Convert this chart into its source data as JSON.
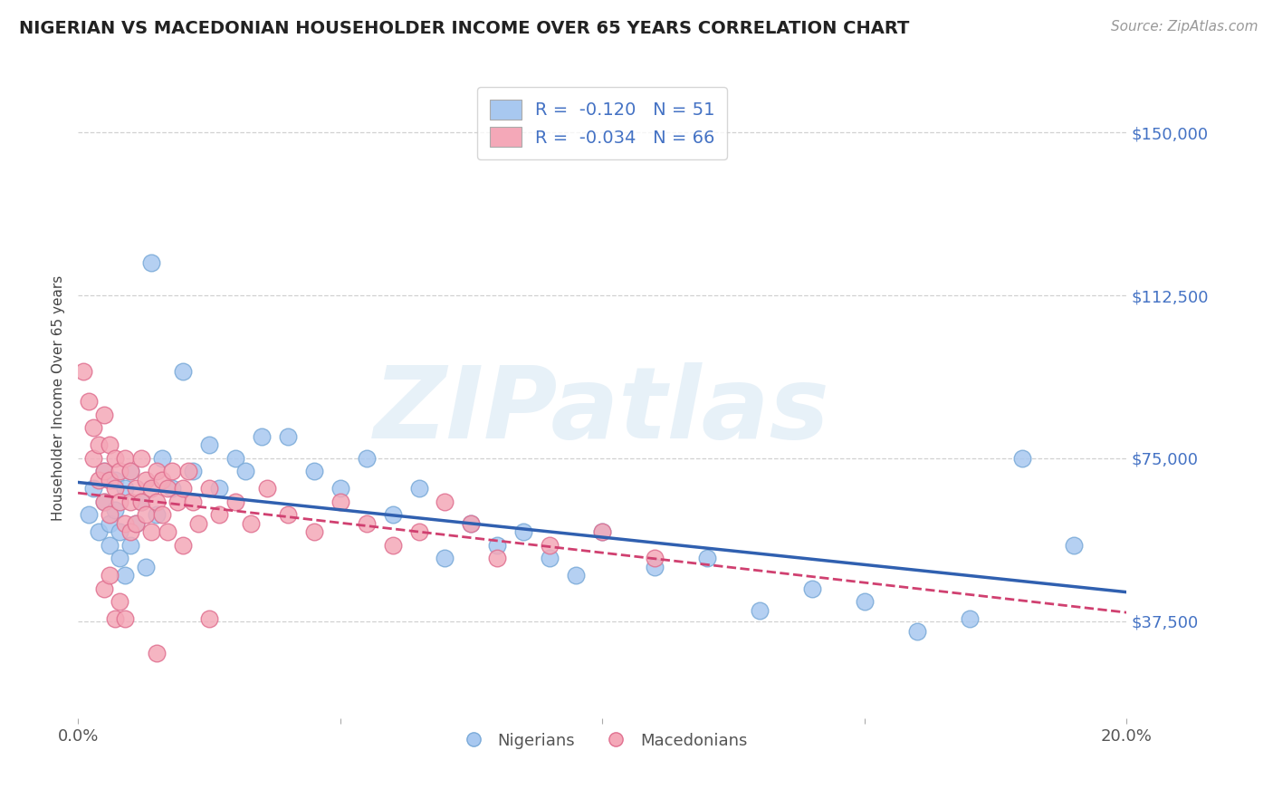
{
  "title": "NIGERIAN VS MACEDONIAN HOUSEHOLDER INCOME OVER 65 YEARS CORRELATION CHART",
  "source": "Source: ZipAtlas.com",
  "ylabel": "Householder Income Over 65 years",
  "xmin": 0.0,
  "xmax": 0.2,
  "ymin": 15000,
  "ymax": 162500,
  "yticks": [
    37500,
    75000,
    112500,
    150000
  ],
  "ytick_labels": [
    "$37,500",
    "$75,000",
    "$112,500",
    "$150,000"
  ],
  "xticks": [
    0.0,
    0.05,
    0.1,
    0.15,
    0.2
  ],
  "xtick_labels": [
    "0.0%",
    "",
    "",
    "",
    "20.0%"
  ],
  "nigerian_R": -0.12,
  "nigerian_N": 51,
  "macedonian_R": -0.034,
  "macedonian_N": 66,
  "nigerian_color": "#a8c8f0",
  "nigerian_edge_color": "#7aaad8",
  "macedonian_color": "#f4a8b8",
  "macedonian_edge_color": "#e07090",
  "nigerian_line_color": "#3060b0",
  "macedonian_line_color": "#d04070",
  "watermark_color": "#d8e8f4",
  "background_color": "#ffffff",
  "grid_color": "#cccccc",
  "nigerian_x": [
    0.002,
    0.003,
    0.004,
    0.005,
    0.005,
    0.006,
    0.006,
    0.007,
    0.007,
    0.008,
    0.008,
    0.009,
    0.009,
    0.01,
    0.01,
    0.011,
    0.012,
    0.013,
    0.014,
    0.015,
    0.016,
    0.018,
    0.02,
    0.022,
    0.025,
    0.027,
    0.03,
    0.032,
    0.035,
    0.04,
    0.045,
    0.05,
    0.055,
    0.06,
    0.065,
    0.07,
    0.075,
    0.08,
    0.085,
    0.09,
    0.095,
    0.1,
    0.11,
    0.12,
    0.13,
    0.14,
    0.15,
    0.16,
    0.17,
    0.18,
    0.19
  ],
  "nigerian_y": [
    62000,
    68000,
    58000,
    65000,
    72000,
    55000,
    60000,
    70000,
    63000,
    58000,
    52000,
    68000,
    48000,
    72000,
    55000,
    60000,
    65000,
    50000,
    120000,
    62000,
    75000,
    68000,
    95000,
    72000,
    78000,
    68000,
    75000,
    72000,
    80000,
    80000,
    72000,
    68000,
    75000,
    62000,
    68000,
    52000,
    60000,
    55000,
    58000,
    52000,
    48000,
    58000,
    50000,
    52000,
    40000,
    45000,
    42000,
    35000,
    38000,
    75000,
    55000
  ],
  "macedonian_x": [
    0.001,
    0.002,
    0.003,
    0.003,
    0.004,
    0.004,
    0.005,
    0.005,
    0.005,
    0.006,
    0.006,
    0.006,
    0.007,
    0.007,
    0.008,
    0.008,
    0.009,
    0.009,
    0.01,
    0.01,
    0.01,
    0.011,
    0.011,
    0.012,
    0.012,
    0.013,
    0.013,
    0.014,
    0.014,
    0.015,
    0.015,
    0.016,
    0.016,
    0.017,
    0.017,
    0.018,
    0.019,
    0.02,
    0.021,
    0.022,
    0.023,
    0.025,
    0.027,
    0.03,
    0.033,
    0.036,
    0.04,
    0.045,
    0.05,
    0.055,
    0.06,
    0.065,
    0.07,
    0.075,
    0.08,
    0.09,
    0.1,
    0.11,
    0.005,
    0.006,
    0.007,
    0.008,
    0.009,
    0.015,
    0.02,
    0.025
  ],
  "macedonian_y": [
    95000,
    88000,
    82000,
    75000,
    78000,
    70000,
    85000,
    72000,
    65000,
    78000,
    70000,
    62000,
    75000,
    68000,
    72000,
    65000,
    75000,
    60000,
    72000,
    65000,
    58000,
    68000,
    60000,
    75000,
    65000,
    70000,
    62000,
    68000,
    58000,
    72000,
    65000,
    70000,
    62000,
    68000,
    58000,
    72000,
    65000,
    68000,
    72000,
    65000,
    60000,
    68000,
    62000,
    65000,
    60000,
    68000,
    62000,
    58000,
    65000,
    60000,
    55000,
    58000,
    65000,
    60000,
    52000,
    55000,
    58000,
    52000,
    45000,
    48000,
    38000,
    42000,
    38000,
    30000,
    55000,
    38000
  ]
}
